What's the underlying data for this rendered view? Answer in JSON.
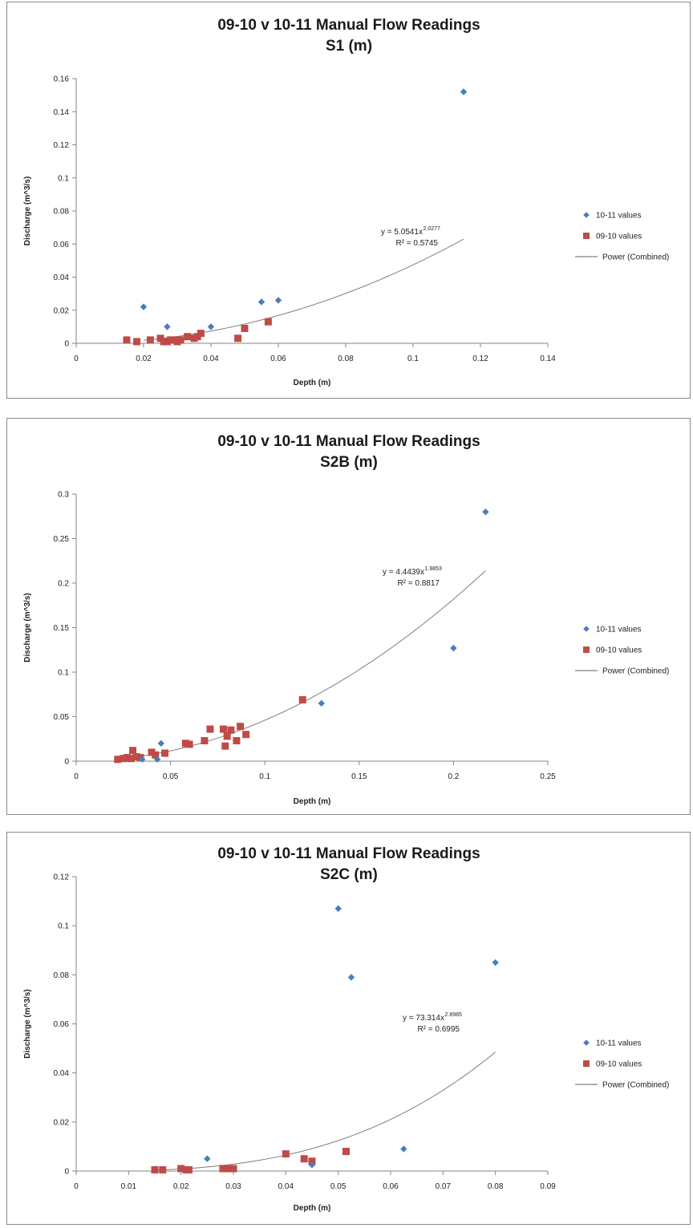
{
  "chart_data": [
    {
      "type": "scatter",
      "title": "09-10 v 10-11 Manual Flow Readings",
      "subtitle": "S1 (m)",
      "xlabel": "Depth (m)",
      "ylabel": "Discharge (m^3/s)",
      "xlim": [
        0,
        0.14
      ],
      "ylim": [
        0,
        0.16
      ],
      "x_ticks": [
        "0",
        "0.02",
        "0.04",
        "0.06",
        "0.08",
        "0.1",
        "0.12",
        "0.14"
      ],
      "y_ticks": [
        "0",
        "0.02",
        "0.04",
        "0.06",
        "0.08",
        "0.1",
        "0.12",
        "0.14",
        "0.16"
      ],
      "grid": false,
      "legend_position": "right",
      "series": [
        {
          "name": "10-11 values",
          "marker": "diamond",
          "color": "#4a7ebb",
          "x": [
            0.02,
            0.027,
            0.04,
            0.055,
            0.06,
            0.115
          ],
          "y": [
            0.022,
            0.01,
            0.01,
            0.025,
            0.026,
            0.152
          ]
        },
        {
          "name": "09-10 values",
          "marker": "square",
          "color": "#be4b48",
          "x": [
            0.015,
            0.018,
            0.022,
            0.025,
            0.026,
            0.027,
            0.028,
            0.029,
            0.03,
            0.031,
            0.033,
            0.035,
            0.036,
            0.037,
            0.048,
            0.05,
            0.057
          ],
          "y": [
            0.002,
            0.001,
            0.002,
            0.003,
            0.001,
            0.001,
            0.002,
            0.002,
            0.001,
            0.002,
            0.004,
            0.003,
            0.004,
            0.006,
            0.003,
            0.009,
            0.013
          ]
        }
      ],
      "trendline": {
        "name": "Power (Combined)",
        "color": "#7f7f7f",
        "a": 5.0541,
        "b": 2.0277,
        "x_range": [
          0.02,
          0.115
        ],
        "equation": "y = 5.0541x",
        "exponent": "2.0277",
        "r2_label": "R² = 0.5745"
      }
    },
    {
      "type": "scatter",
      "title": "09-10 v 10-11 Manual Flow Readings",
      "subtitle": "S2B (m)",
      "xlabel": "Depth (m)",
      "ylabel": "Discharge (m^3/s)",
      "xlim": [
        0,
        0.25
      ],
      "ylim": [
        0,
        0.3
      ],
      "x_ticks": [
        "0",
        "0.05",
        "0.1",
        "0.15",
        "0.2",
        "0.25"
      ],
      "y_ticks": [
        "0",
        "0.05",
        "0.1",
        "0.15",
        "0.2",
        "0.25",
        "0.3"
      ],
      "grid": false,
      "legend_position": "right",
      "series": [
        {
          "name": "10-11 values",
          "marker": "diamond",
          "color": "#4a7ebb",
          "x": [
            0.035,
            0.043,
            0.045,
            0.13,
            0.2,
            0.217
          ],
          "y": [
            0.002,
            0.002,
            0.02,
            0.065,
            0.127,
            0.28
          ]
        },
        {
          "name": "09-10 values",
          "marker": "square",
          "color": "#be4b48",
          "x": [
            0.022,
            0.025,
            0.027,
            0.029,
            0.03,
            0.032,
            0.034,
            0.04,
            0.042,
            0.047,
            0.058,
            0.06,
            0.068,
            0.071,
            0.078,
            0.079,
            0.08,
            0.082,
            0.085,
            0.087,
            0.09,
            0.12
          ],
          "y": [
            0.002,
            0.003,
            0.004,
            0.003,
            0.012,
            0.005,
            0.004,
            0.01,
            0.007,
            0.009,
            0.02,
            0.019,
            0.023,
            0.036,
            0.036,
            0.017,
            0.028,
            0.035,
            0.023,
            0.039,
            0.03,
            0.069
          ]
        }
      ],
      "trendline": {
        "name": "Power (Combined)",
        "color": "#7f7f7f",
        "a": 4.4439,
        "b": 1.9853,
        "x_range": [
          0.022,
          0.217
        ],
        "equation": "y = 4.4439x",
        "exponent": "1.9853",
        "r2_label": "R² = 0.8817"
      }
    },
    {
      "type": "scatter",
      "title": "09-10 v 10-11 Manual Flow Readings",
      "subtitle": "S2C (m)",
      "xlabel": "Depth (m)",
      "ylabel": "Discharge (m^3/s)",
      "xlim": [
        0,
        0.09
      ],
      "ylim": [
        0,
        0.12
      ],
      "x_ticks": [
        "0",
        "0.01",
        "0.02",
        "0.03",
        "0.04",
        "0.05",
        "0.06",
        "0.07",
        "0.08",
        "0.09"
      ],
      "y_ticks": [
        "0",
        "0.02",
        "0.04",
        "0.06",
        "0.08",
        "0.1",
        "0.12"
      ],
      "grid": false,
      "legend_position": "right",
      "series": [
        {
          "name": "10-11 values",
          "marker": "diamond",
          "color": "#4a7ebb",
          "x": [
            0.025,
            0.045,
            0.05,
            0.0525,
            0.0625,
            0.08
          ],
          "y": [
            0.005,
            0.0025,
            0.107,
            0.079,
            0.009,
            0.085
          ]
        },
        {
          "name": "09-10 values",
          "marker": "square",
          "color": "#be4b48",
          "x": [
            0.015,
            0.0165,
            0.02,
            0.021,
            0.0215,
            0.028,
            0.029,
            0.03,
            0.04,
            0.0435,
            0.045,
            0.0515
          ],
          "y": [
            0.0005,
            0.0005,
            0.001,
            0.0005,
            0.0005,
            0.001,
            0.001,
            0.001,
            0.007,
            0.005,
            0.004,
            0.008
          ]
        }
      ],
      "trendline": {
        "name": "Power (Combined)",
        "color": "#7f7f7f",
        "a": 73.314,
        "b": 2.8985,
        "x_range": [
          0.015,
          0.08
        ],
        "equation": "y = 73.314x",
        "exponent": "2.8985",
        "r2_label": "R² = 0.6995"
      }
    }
  ]
}
